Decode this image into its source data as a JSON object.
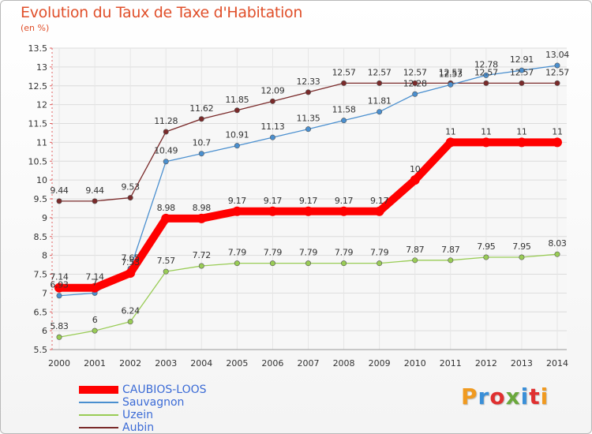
{
  "chart_data": {
    "type": "line",
    "title": "Evolution du Taux de Taxe d'Habitation",
    "subtitle": "(en %)",
    "x": [
      "2000",
      "2001",
      "2002",
      "2003",
      "2004",
      "2005",
      "2006",
      "2007",
      "2008",
      "2009",
      "2010",
      "2011",
      "2012",
      "2013",
      "2014"
    ],
    "ylim": [
      5.5,
      13.5
    ],
    "yticks": [
      "5.5",
      "6",
      "6.5",
      "7",
      "7.5",
      "8",
      "8.5",
      "9",
      "9.5",
      "10",
      "10.5",
      "11",
      "11.5",
      "12",
      "12.5",
      "13",
      "13.5"
    ],
    "grid": true,
    "legend_position": "bottom-left",
    "series": [
      {
        "name": "CAUBIOS-LOOS",
        "color": "#ff0000",
        "values": [
          7.14,
          7.14,
          7.53,
          8.98,
          8.98,
          9.17,
          9.17,
          9.17,
          9.17,
          9.17,
          10,
          11,
          11,
          11,
          11
        ],
        "labels": [
          "7.14",
          "7.14",
          "7.53",
          "8.98",
          "8.98",
          "9.17",
          "9.17",
          "9.17",
          "9.17",
          "9.17",
          "10",
          "11",
          "11",
          "11",
          "11"
        ]
      },
      {
        "name": "Sauvagnon",
        "color": "#4a8fcf",
        "values": [
          6.93,
          7.0,
          7.65,
          10.49,
          10.7,
          10.91,
          11.13,
          11.35,
          11.58,
          11.81,
          12.28,
          12.53,
          12.78,
          12.91,
          13.04
        ],
        "labels": [
          "6.93",
          "7",
          "7.65",
          "10.49",
          "10.7",
          "10.91",
          "11.13",
          "11.35",
          "11.58",
          "11.81",
          "12.28",
          "12.53",
          "12.78",
          "12.91",
          "13.04"
        ]
      },
      {
        "name": "Uzein",
        "color": "#99cc55",
        "values": [
          5.83,
          6,
          6.24,
          7.57,
          7.72,
          7.79,
          7.79,
          7.79,
          7.79,
          7.79,
          7.87,
          7.87,
          7.95,
          7.95,
          8.03
        ],
        "labels": [
          "5.83",
          "6",
          "6.24",
          "7.57",
          "7.72",
          "7.79",
          "7.79",
          "7.79",
          "7.79",
          "7.79",
          "7.87",
          "7.87",
          "7.95",
          "7.95",
          "8.03"
        ]
      },
      {
        "name": "Aubin",
        "color": "#7a2a2a",
        "values": [
          9.44,
          9.44,
          9.53,
          11.28,
          11.62,
          11.85,
          12.09,
          12.33,
          12.57,
          12.57,
          12.57,
          12.57,
          12.57,
          12.57,
          12.57
        ],
        "labels": [
          "9.44",
          "9.44",
          "9.53",
          "11.28",
          "11.62",
          "11.85",
          "12.09",
          "12.33",
          "12.57",
          "12.57",
          "12.57",
          "12.57",
          "12.57",
          "12.57",
          "12.57"
        ]
      }
    ]
  },
  "logo": {
    "text": "Proxiti",
    "colors": [
      "#f09a20",
      "#3a8fd8",
      "#e03030",
      "#6aa83c",
      "#3a8fd8",
      "#e03030",
      "#f09a20"
    ]
  }
}
